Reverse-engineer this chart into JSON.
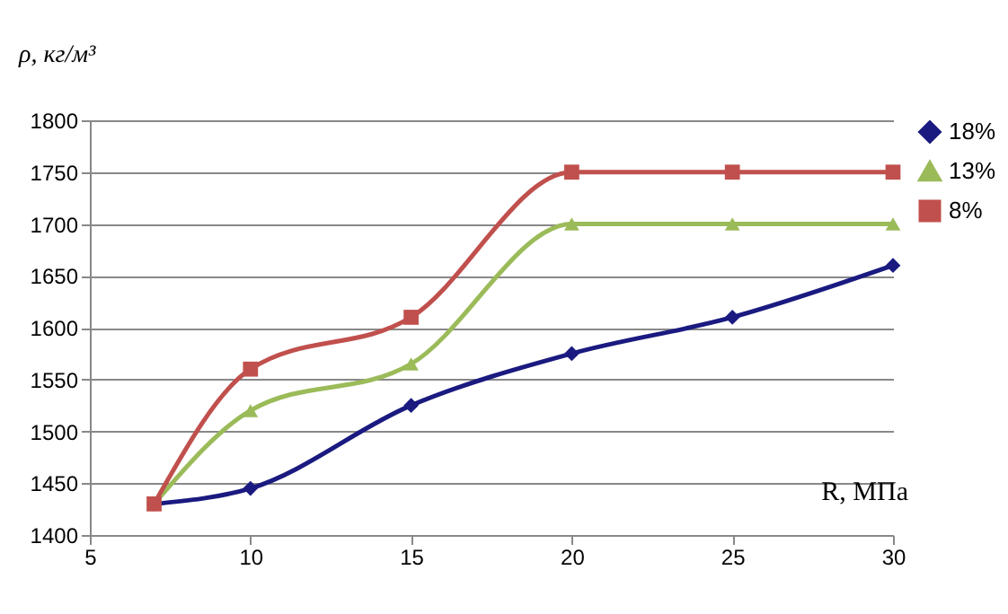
{
  "chart_data": {
    "type": "line",
    "xlabel": "R, МПа",
    "ylabel": "ρ, кг/м³",
    "x": [
      7,
      10,
      15,
      20,
      25,
      30
    ],
    "series": [
      {
        "name": "18%",
        "color": "#1a1a80",
        "marker": "diamond",
        "values": [
          1430,
          1445,
          1525,
          1575,
          1610,
          1660
        ]
      },
      {
        "name": "13%",
        "color": "#9bbb59",
        "marker": "triangle",
        "values": [
          1430,
          1520,
          1565,
          1700,
          1700,
          1700
        ]
      },
      {
        "name": "8%",
        "color": "#c0504d",
        "marker": "square",
        "values": [
          1430,
          1560,
          1610,
          1750,
          1750,
          1750
        ]
      }
    ],
    "xlim": [
      5,
      30
    ],
    "xticks": [
      5,
      10,
      15,
      20,
      25,
      30
    ],
    "ylim": [
      1400,
      1800
    ],
    "yticks": [
      1400,
      1450,
      1500,
      1550,
      1600,
      1650,
      1700,
      1750,
      1800
    ],
    "grid": "y",
    "legend": "right",
    "line_style": "solid"
  }
}
